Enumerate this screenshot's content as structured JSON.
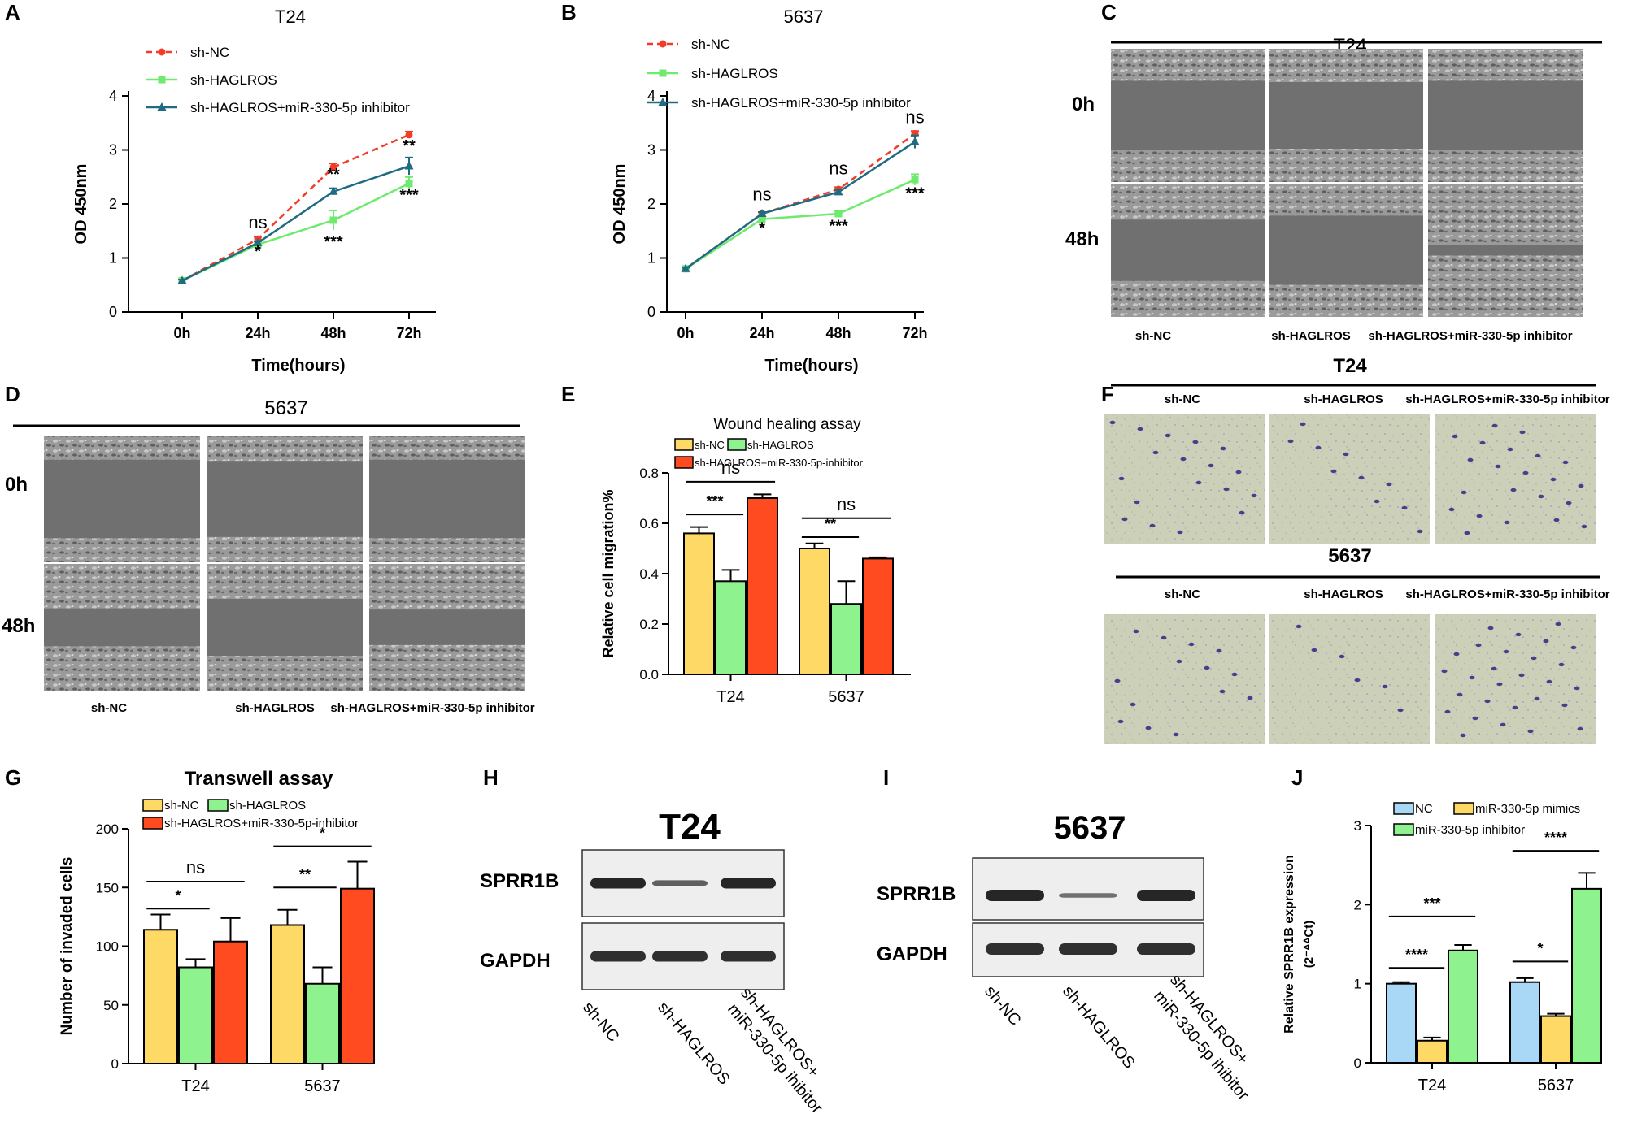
{
  "panel_letters": [
    "A",
    "B",
    "C",
    "D",
    "E",
    "F",
    "G",
    "H",
    "I",
    "J"
  ],
  "chart_data": [
    {
      "panel": "A",
      "type": "line",
      "title": "T24",
      "categories": [
        "0h",
        "24h",
        "48h",
        "72h"
      ],
      "xlabel": "Time(hours)",
      "ylabel": "OD 450nm",
      "ylim": [
        0,
        4
      ],
      "yticks": [
        "0",
        "1",
        "2",
        "3",
        "4"
      ],
      "series": [
        {
          "name": "sh-NC",
          "color": "#f03c28",
          "values": [
            0.58,
            1.35,
            2.68,
            3.28
          ],
          "errors": [
            0.02,
            0.04,
            0.07,
            0.06
          ],
          "dashed": true
        },
        {
          "name": "sh-HAGLROS",
          "color": "#6eea6e",
          "values": [
            0.58,
            1.25,
            1.7,
            2.38
          ],
          "errors": [
            0.02,
            0.04,
            0.18,
            0.12
          ],
          "dashed": false
        },
        {
          "name": "sh-HAGLROS+miR-330-5p inhibitor",
          "color": "#1f6b82",
          "values": [
            0.58,
            1.28,
            2.23,
            2.7
          ],
          "errors": [
            0.02,
            0.03,
            0.06,
            0.16
          ],
          "dashed": false
        }
      ],
      "annotations": [
        {
          "cat": 1,
          "y": 1.55,
          "text": "ns"
        },
        {
          "cat": 1,
          "y": 1.02,
          "text": "*"
        },
        {
          "cat": 2,
          "y": 2.45,
          "text": "**"
        },
        {
          "cat": 2,
          "y": 1.2,
          "text": "***"
        },
        {
          "cat": 3,
          "y": 2.98,
          "text": "**"
        },
        {
          "cat": 3,
          "y": 2.07,
          "text": "***"
        }
      ]
    },
    {
      "panel": "B",
      "type": "line",
      "title": "5637",
      "categories": [
        "0h",
        "24h",
        "48h",
        "72h"
      ],
      "xlabel": "Time(hours)",
      "ylabel": "OD 450nm",
      "ylim": [
        0,
        4
      ],
      "yticks": [
        "0",
        "1",
        "2",
        "3",
        "4"
      ],
      "series": [
        {
          "name": "sh-NC",
          "color": "#f03c28",
          "values": [
            0.8,
            1.82,
            2.27,
            3.3
          ],
          "errors": [
            0.02,
            0.03,
            0.04,
            0.05
          ],
          "dashed": true
        },
        {
          "name": "sh-HAGLROS",
          "color": "#6eea6e",
          "values": [
            0.8,
            1.72,
            1.82,
            2.45
          ],
          "errors": [
            0.02,
            0.04,
            0.05,
            0.1
          ],
          "dashed": false
        },
        {
          "name": "sh-HAGLROS+miR-330-5p inhibitor",
          "color": "#1f6b82",
          "values": [
            0.8,
            1.82,
            2.22,
            3.15
          ],
          "errors": [
            0.02,
            0.03,
            0.04,
            0.12
          ],
          "dashed": false
        }
      ],
      "annotations": [
        {
          "cat": 1,
          "y": 2.07,
          "text": "ns"
        },
        {
          "cat": 1,
          "y": 1.45,
          "text": "*"
        },
        {
          "cat": 2,
          "y": 2.55,
          "text": "ns"
        },
        {
          "cat": 2,
          "y": 1.5,
          "text": "***"
        },
        {
          "cat": 3,
          "y": 3.5,
          "text": "ns"
        },
        {
          "cat": 3,
          "y": 2.1,
          "text": "***"
        }
      ]
    },
    {
      "panel": "E",
      "type": "bar",
      "title": "Wound healing assay",
      "categories": [
        "T24",
        "5637"
      ],
      "ylabel": "Relative cell migration%",
      "ylim": [
        0,
        0.8
      ],
      "yticks": [
        "0.0",
        "0.2",
        "0.4",
        "0.6",
        "0.8"
      ],
      "series": [
        {
          "name": "sh-NC",
          "color": "#ffd966",
          "values": [
            0.56,
            0.5
          ],
          "errors": [
            0.025,
            0.02
          ]
        },
        {
          "name": "sh-HAGLROS",
          "color": "#8ef38e",
          "values": [
            0.37,
            0.28
          ],
          "errors": [
            0.045,
            0.09
          ]
        },
        {
          "name": "sh-HAGLROS+miR-330-5p-inhibitor",
          "color": "#ff4b1f",
          "values": [
            0.7,
            0.46
          ],
          "errors": [
            0.015,
            0.005
          ]
        }
      ],
      "comparisons": [
        {
          "group": 0,
          "from": 0,
          "to": 2,
          "y": 0.765,
          "text": "ns"
        },
        {
          "group": 0,
          "from": 0,
          "to": 1,
          "y": 0.635,
          "text": "***"
        },
        {
          "group": 1,
          "from": 0,
          "to": 2,
          "y": 0.62,
          "text": "ns"
        },
        {
          "group": 1,
          "from": 0,
          "to": 1,
          "y": 0.545,
          "text": "**"
        }
      ]
    },
    {
      "panel": "G",
      "type": "bar",
      "title": "Transwell assay",
      "categories": [
        "T24",
        "5637"
      ],
      "ylabel": "Number of invaded cells",
      "ylim": [
        0,
        200
      ],
      "yticks": [
        "0",
        "50",
        "100",
        "150",
        "200"
      ],
      "series": [
        {
          "name": "sh-NC",
          "color": "#ffd966",
          "values": [
            114,
            118
          ],
          "errors": [
            13,
            13
          ]
        },
        {
          "name": "sh-HAGLROS",
          "color": "#8ef38e",
          "values": [
            82,
            68
          ],
          "errors": [
            7,
            14
          ]
        },
        {
          "name": "sh-HAGLROS+miR-330-5p-inhibitor",
          "color": "#ff4b1f",
          "values": [
            104,
            149
          ],
          "errors": [
            20,
            23
          ]
        }
      ],
      "comparisons": [
        {
          "group": 0,
          "from": 0,
          "to": 2,
          "y": 155,
          "text": "ns"
        },
        {
          "group": 0,
          "from": 0,
          "to": 1,
          "y": 132,
          "text": "*"
        },
        {
          "group": 1,
          "from": 0,
          "to": 2,
          "y": 185,
          "text": "*"
        },
        {
          "group": 1,
          "from": 0,
          "to": 1,
          "y": 150,
          "text": "**"
        }
      ]
    },
    {
      "panel": "J",
      "type": "bar",
      "title": "",
      "categories": [
        "T24",
        "5637"
      ],
      "ylabel": "Relative SPRR1B expression",
      "ylabel2": "(2⁻ᐞᐞCt)",
      "ylim": [
        0,
        3
      ],
      "yticks": [
        "0",
        "1",
        "2",
        "3"
      ],
      "series": [
        {
          "name": "NC",
          "color": "#a8d8f5",
          "values": [
            1.0,
            1.02
          ],
          "errors": [
            0.02,
            0.05
          ]
        },
        {
          "name": "miR-330-5p mimics",
          "color": "#ffd966",
          "values": [
            0.28,
            0.59
          ],
          "errors": [
            0.04,
            0.03
          ]
        },
        {
          "name": "miR-330-5p inhibitor",
          "color": "#8ef38e",
          "values": [
            1.42,
            2.2
          ],
          "errors": [
            0.07,
            0.2
          ]
        }
      ],
      "comparisons": [
        {
          "group": 0,
          "from": 0,
          "to": 2,
          "y": 1.85,
          "text": "***"
        },
        {
          "group": 0,
          "from": 0,
          "to": 1,
          "y": 1.2,
          "text": "****"
        },
        {
          "group": 1,
          "from": 0,
          "to": 2,
          "y": 2.68,
          "text": "****"
        },
        {
          "group": 1,
          "from": 0,
          "to": 1,
          "y": 1.28,
          "text": "*"
        }
      ]
    }
  ],
  "micrographs": {
    "C": {
      "title": "T24",
      "rows": [
        "0h",
        "48h"
      ],
      "cols": [
        "sh-NC",
        "sh-HAGLROS",
        "sh-HAGLROS+miR-330-5p inhibitor"
      ]
    },
    "D": {
      "title": "5637",
      "rows": [
        "0h",
        "48h"
      ],
      "cols": [
        "sh-NC",
        "sh-HAGLROS",
        "sh-HAGLROS+miR-330-5p inhibitor"
      ]
    },
    "F": {
      "title_top": "T24",
      "title_bottom": "5637",
      "cols": [
        "sh-NC",
        "sh-HAGLROS",
        "sh-HAGLROS+miR-330-5p inhibitor"
      ]
    }
  },
  "blots": {
    "H": {
      "title": "T24",
      "bands": [
        "SPRR1B",
        "GAPDH"
      ],
      "lanes": [
        "sh-NC",
        "sh-HAGLROS",
        "sh-HAGLROS+",
        "miR-330-5p ihibitor"
      ],
      "sprr1b_intensity": [
        1.0,
        0.55,
        1.0
      ]
    },
    "I": {
      "title": "5637",
      "bands": [
        "SPRR1B",
        "GAPDH"
      ],
      "lanes": [
        "sh-NC",
        "sh-HAGLROS",
        "sh-HAGLROS+",
        "miR-330-5p ihibitor"
      ],
      "sprr1b_intensity": [
        1.0,
        0.4,
        1.0
      ]
    }
  },
  "colors": {
    "axis": "#000000",
    "gel_bg": "#eeeeee",
    "band": "#1a1a1a",
    "scratch_gap": "#707070",
    "cell_region": "#9a9a9a",
    "transwell_bg": "#cdd0b8",
    "cell_stain": "#4b3c8c"
  }
}
